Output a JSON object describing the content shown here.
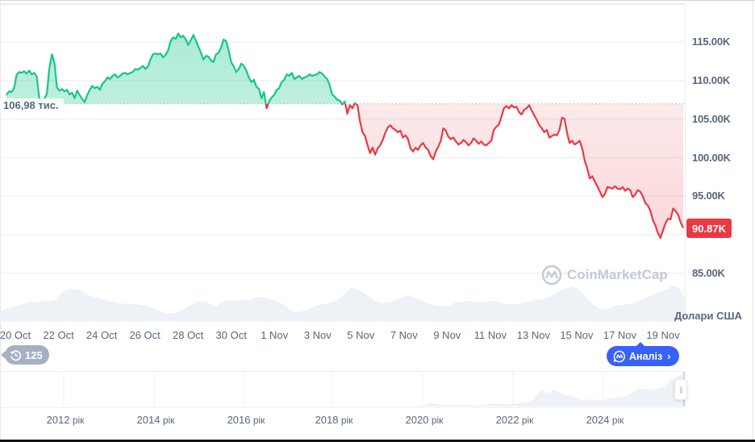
{
  "chart_data": {
    "type": "area",
    "title": "",
    "currency_label": "Долари США",
    "baseline": {
      "value": 106.98,
      "label": "106,98 тис."
    },
    "current_price": {
      "value": 90.87,
      "label": "90.87K",
      "color": "#ea3943"
    },
    "colors": {
      "up": "#16c784",
      "down": "#ea3943",
      "up_fill": "#cdf2e1",
      "down_fill": "#fde3e5",
      "volume": "#eef1f5",
      "grid": "#eff2f5"
    },
    "y_axis": {
      "unit": "K",
      "ticks": [
        {
          "value": 115,
          "label": "115.00K"
        },
        {
          "value": 110,
          "label": "110.00K"
        },
        {
          "value": 105,
          "label": "105.00K"
        },
        {
          "value": 100,
          "label": "100.00K"
        },
        {
          "value": 95,
          "label": "95.00K"
        },
        {
          "value": 85,
          "label": "85.00K"
        }
      ],
      "range": [
        85,
        115
      ]
    },
    "x_axis": {
      "ticks": [
        "20 Oct",
        "22 Oct",
        "24 Oct",
        "26 Oct",
        "28 Oct",
        "30 Oct",
        "1 Nov",
        "3 Nov",
        "5 Nov",
        "7 Nov",
        "9 Nov",
        "11 Nov",
        "13 Nov",
        "15 Nov",
        "17 Nov",
        "19 Nov"
      ]
    },
    "series": [
      {
        "name": "Price (K USD)",
        "x_start": "20 Oct",
        "x_end": "19 Nov",
        "values": [
          108.1,
          108.6,
          108.5,
          109.0,
          110.7,
          111.1,
          111.0,
          111.2,
          110.9,
          111.3,
          110.8,
          111.0,
          110.5,
          107.7,
          107.5,
          107.6,
          108.3,
          111.6,
          113.4,
          112.3,
          109.1,
          108.7,
          108.9,
          108.6,
          108.8,
          108.2,
          108.4,
          107.7,
          108.7,
          108.1,
          107.6,
          107.2,
          108.1,
          108.8,
          109.3,
          109.0,
          109.2,
          108.8,
          109.6,
          109.9,
          110.4,
          110.2,
          110.6,
          110.8,
          110.4,
          110.6,
          110.9,
          111.0,
          110.8,
          111.0,
          111.1,
          111.5,
          111.4,
          111.6,
          111.9,
          111.5,
          111.8,
          112.7,
          113.4,
          113.5,
          113.4,
          113.5,
          113.0,
          113.3,
          113.9,
          115.1,
          115.6,
          115.4,
          116.1,
          115.6,
          115.8,
          115.3,
          114.6,
          115.2,
          115.9,
          115.2,
          114.4,
          113.6,
          112.7,
          113.2,
          113.1,
          112.6,
          112.4,
          113.4,
          113.6,
          114.3,
          115.3,
          115.1,
          113.9,
          112.4,
          111.8,
          111.1,
          111.5,
          112.2,
          111.9,
          111.3,
          110.4,
          109.8,
          110.1,
          109.2,
          108.9,
          107.7,
          108.5,
          106.4,
          107.3,
          107.8,
          108.1,
          108.8,
          109.0,
          109.8,
          110.1,
          110.8,
          110.6,
          111.0,
          110.2,
          110.4,
          110.6,
          110.2,
          110.4,
          110.5,
          110.8,
          110.6,
          110.7,
          110.8,
          111.1,
          110.9,
          110.5,
          110.2,
          109.4,
          108.2,
          107.9,
          107.5,
          107.4,
          106.9,
          107.3,
          105.7,
          106.8,
          106.4,
          107.1,
          106.8,
          104.7,
          103.3,
          102.8,
          101.6,
          100.6,
          101.3,
          100.4,
          101.2,
          101.6,
          102.3,
          103.2,
          103.9,
          104.2,
          103.8,
          103.6,
          103.3,
          103.5,
          102.6,
          102.9,
          102.4,
          101.2,
          100.8,
          101.3,
          101.0,
          101.6,
          101.9,
          101.3,
          101.0,
          100.2,
          99.8,
          100.8,
          101.4,
          102.2,
          103.8,
          103.5,
          102.7,
          102.4,
          102.6,
          102.1,
          101.7,
          101.9,
          102.3,
          102.0,
          101.6,
          101.9,
          102.5,
          102.2,
          101.8,
          102.1,
          101.7,
          101.6,
          101.9,
          102.2,
          103.6,
          104.0,
          104.3,
          105.3,
          106.4,
          106.7,
          106.4,
          106.8,
          106.5,
          106.6,
          105.9,
          105.6,
          106.2,
          106.4,
          106.8,
          106.1,
          105.5,
          104.9,
          104.2,
          103.8,
          103.3,
          103.6,
          102.6,
          102.8,
          103.0,
          102.9,
          103.6,
          105.2,
          105.0,
          103.2,
          101.9,
          102.2,
          101.7,
          101.9,
          102.2,
          101.2,
          99.6,
          98.6,
          97.3,
          97.6,
          96.9,
          96.3,
          95.6,
          94.9,
          95.3,
          96.2,
          96.1,
          96.0,
          96.3,
          96.0,
          95.9,
          96.2,
          95.7,
          96.0,
          95.8,
          94.9,
          95.2,
          95.8,
          95.6,
          95.0,
          94.1,
          93.8,
          93.1,
          91.9,
          91.2,
          90.2,
          89.6,
          90.6,
          91.5,
          92.1,
          92.0,
          93.4,
          93.1,
          92.6,
          91.6,
          90.9
        ]
      },
      {
        "name": "Volume (relative 0-1)",
        "values": [
          0.25,
          0.32,
          0.36,
          0.4,
          0.45,
          0.5,
          0.47,
          0.53,
          0.51,
          0.54,
          0.72,
          0.82,
          0.82,
          0.8,
          0.7,
          0.62,
          0.6,
          0.55,
          0.5,
          0.47,
          0.45,
          0.43,
          0.44,
          0.41,
          0.38,
          0.32,
          0.25,
          0.2,
          0.2,
          0.25,
          0.32,
          0.42,
          0.5,
          0.52,
          0.45,
          0.38,
          0.5,
          0.54,
          0.52,
          0.55,
          0.54,
          0.58,
          0.62,
          0.6,
          0.56,
          0.5,
          0.42,
          0.28,
          0.22,
          0.25,
          0.3,
          0.38,
          0.42,
          0.45,
          0.5,
          0.58,
          0.72,
          0.88,
          0.8,
          0.72,
          0.6,
          0.5,
          0.46,
          0.48,
          0.52,
          0.6,
          0.66,
          0.62,
          0.55,
          0.48,
          0.42,
          0.38,
          0.38,
          0.42,
          0.48,
          0.5,
          0.52,
          0.5,
          0.48,
          0.5,
          0.52,
          0.48,
          0.45,
          0.42,
          0.45,
          0.48,
          0.5,
          0.55,
          0.58,
          0.6,
          0.7,
          0.8,
          0.85,
          0.9,
          0.78,
          0.6,
          0.45,
          0.32,
          0.3,
          0.35,
          0.4,
          0.42,
          0.44,
          0.48,
          0.55,
          0.62,
          0.68,
          0.75,
          0.82,
          0.92,
          0.85,
          0.6
        ]
      }
    ],
    "navigator": {
      "year_ticks": [
        {
          "year": "2012",
          "suffix": "рік"
        },
        {
          "year": "2014",
          "suffix": "рік"
        },
        {
          "year": "2016",
          "suffix": "рік"
        },
        {
          "year": "2018",
          "suffix": "рік"
        },
        {
          "year": "2020",
          "suffix": "рік"
        },
        {
          "year": "2022",
          "suffix": "рік"
        },
        {
          "year": "2024",
          "suffix": "рік"
        }
      ],
      "history_values": [
        0,
        0,
        0,
        0,
        0,
        0,
        0,
        0,
        0,
        0,
        0,
        0,
        0,
        0,
        0,
        0,
        0,
        0,
        0,
        0,
        0,
        0,
        0,
        0,
        0,
        0,
        0,
        0,
        0,
        0,
        0,
        0,
        0,
        0,
        0,
        0,
        0,
        0,
        0,
        0,
        0,
        0,
        0,
        0,
        0,
        0,
        0,
        0,
        0,
        0,
        0,
        0,
        0,
        0,
        0,
        0,
        0,
        0,
        0,
        0,
        0,
        0,
        0,
        0,
        0,
        0,
        0,
        0,
        0,
        0,
        0,
        0,
        0,
        0,
        0,
        0,
        0,
        0,
        0,
        0,
        0,
        0,
        0,
        0,
        0,
        0,
        0,
        0,
        0,
        0,
        0,
        0,
        0,
        0,
        0,
        0,
        0,
        0,
        0,
        0,
        0,
        0,
        0.01,
        0.02,
        0.03,
        0.05,
        0.04,
        0.12,
        0.1,
        0.08,
        0.06,
        0.05,
        0.05,
        0.05,
        0.04,
        0.04,
        0.04,
        0.04,
        0.03,
        0.03,
        0.04,
        0.05,
        0.08,
        0.1,
        0.09,
        0.08,
        0.07,
        0.08,
        0.08,
        0.09,
        0.1,
        0.12,
        0.15,
        0.2,
        0.35,
        0.5,
        0.45,
        0.42,
        0.5,
        0.48,
        0.4,
        0.36,
        0.35,
        0.3,
        0.25,
        0.2,
        0.2,
        0.22,
        0.22,
        0.2,
        0.2,
        0.22,
        0.25,
        0.25,
        0.28,
        0.3,
        0.32,
        0.38,
        0.45,
        0.55,
        0.55,
        0.52,
        0.55,
        0.5,
        0.55,
        0.6,
        0.62,
        0.78,
        0.85,
        0.95,
        0.98,
        0.9
      ]
    }
  },
  "labels": {
    "baseline_label": "106,98 тис.",
    "current_price": "90.87K",
    "currency": "Долари США",
    "watermark": "CoinMarketCap",
    "history_count": "125",
    "analysis_button": "Аналіз"
  },
  "icons": {
    "history": "history-clock-icon",
    "analysis": "coinmarketcap-chat-icon",
    "chevron": "chevron-right-icon",
    "handle": "drag-handle-icon"
  }
}
